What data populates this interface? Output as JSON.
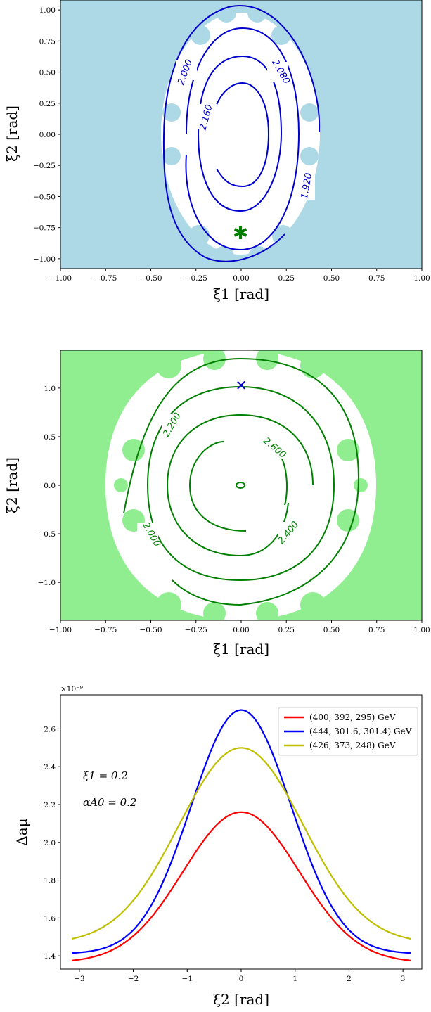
{
  "chart_data": [
    {
      "type": "contour",
      "panel": "top",
      "xlabel": "ξ1 [rad]",
      "ylabel": "ξ2 [rad]",
      "xlim": [
        -1.0,
        1.0
      ],
      "ylim": [
        -1.08,
        1.08
      ],
      "xticks": [
        "−1.00",
        "−0.75",
        "−0.50",
        "−0.25",
        "0.00",
        "0.25",
        "0.50",
        "0.75",
        "1.00"
      ],
      "yticks": [
        "1.00",
        "0.75",
        "0.50",
        "0.25",
        "0.00",
        "−0.25",
        "−0.50",
        "−0.75",
        "−1.00"
      ],
      "excluded_region_color": "#add8e6",
      "contour_color": "#0000cc",
      "contour_levels": [
        "2.000",
        "2.080",
        "2.160",
        "1.920"
      ],
      "marker": {
        "symbol": "*",
        "x": 0.0,
        "y": -0.8,
        "color": "#008000"
      }
    },
    {
      "type": "contour",
      "panel": "middle",
      "xlabel": "ξ1 [rad]",
      "ylabel": "ξ2 [rad]",
      "xlim": [
        -1.0,
        1.0
      ],
      "ylim": [
        -1.39,
        1.39
      ],
      "xticks": [
        "−1.00",
        "−0.75",
        "−0.50",
        "−0.25",
        "0.00",
        "0.25",
        "0.50",
        "0.75",
        "1.00"
      ],
      "yticks": [
        "1.0",
        "0.5",
        "0.0",
        "−0.5",
        "−1.0"
      ],
      "excluded_region_color": "#90ee90",
      "contour_color": "#007f00",
      "contour_levels": [
        "2.200",
        "2.600",
        "2.000",
        "2.400"
      ],
      "marker": {
        "symbol": "x",
        "x": 0.0,
        "y": 1.03,
        "color": "#0000cc"
      }
    },
    {
      "type": "line",
      "panel": "bottom",
      "xlabel": "ξ2 [rad]",
      "ylabel": "Δaμ",
      "scale_label": "×10⁻⁹",
      "xlim": [
        -3.35,
        3.35
      ],
      "ylim": [
        1.33,
        2.78
      ],
      "xticks": [
        "−3",
        "−2",
        "−1",
        "0",
        "1",
        "2",
        "3"
      ],
      "yticks": [
        "2.6",
        "2.4",
        "2.2",
        "2.0",
        "1.8",
        "1.6",
        "1.4"
      ],
      "annotations": [
        "ξ1 = 0.2",
        "αA0 = 0.2"
      ],
      "legend_position": "upper-right",
      "series": [
        {
          "name": "(400, 392, 295) GeV",
          "color": "#ff0000",
          "min": 1.375,
          "max": 2.16
        },
        {
          "name": "(444, 301.6, 301.4) GeV",
          "color": "#0000ff",
          "min": 1.415,
          "max": 2.7
        },
        {
          "name": "(426, 373, 248) GeV",
          "color": "#bfbf00",
          "min": 1.49,
          "max": 2.5
        }
      ]
    }
  ]
}
